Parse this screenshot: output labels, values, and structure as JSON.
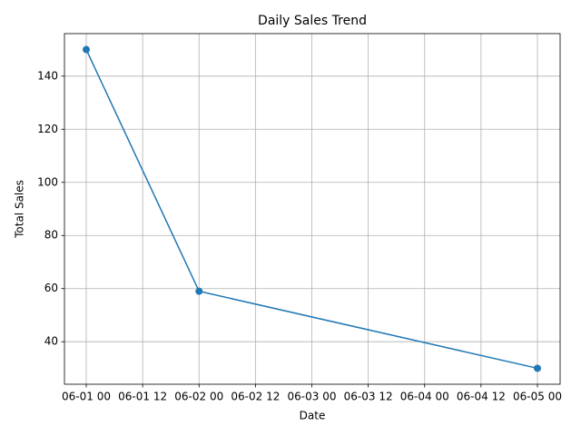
{
  "chart_data": {
    "type": "line",
    "title": "Daily Sales Trend",
    "xlabel": "Date",
    "ylabel": "Total Sales",
    "x": [
      "06-01 00",
      "06-02 00",
      "06-05 00"
    ],
    "series": [
      {
        "name": "Total Sales",
        "color": "#1f77b4",
        "values": [
          150,
          59,
          30
        ]
      }
    ],
    "xticks": [
      "06-01 00",
      "06-01 12",
      "06-02 00",
      "06-02 12",
      "06-03 00",
      "06-03 12",
      "06-04 00",
      "06-04 12",
      "06-05 00"
    ],
    "ylim": [
      24,
      156
    ],
    "yticks": [
      40,
      60,
      80,
      100,
      120,
      140
    ],
    "grid": true,
    "markers": true
  }
}
